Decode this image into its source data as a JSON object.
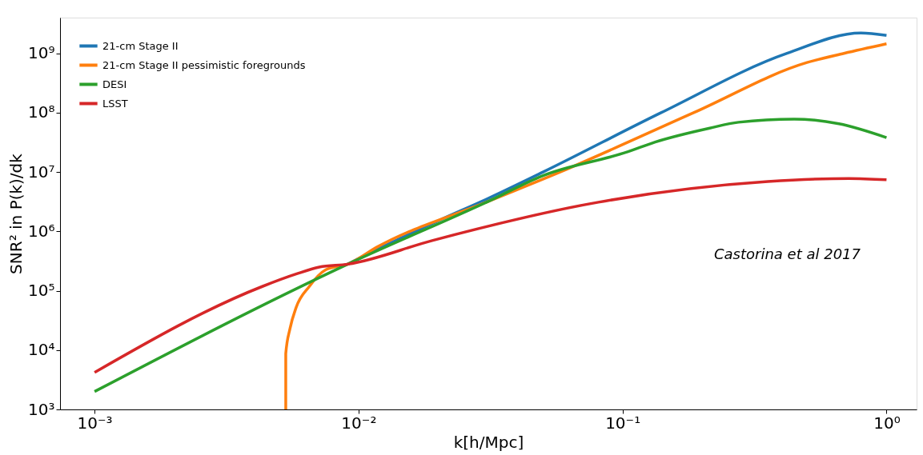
{
  "chart_data": {
    "type": "line",
    "xlabel": "k[h/Mpc]",
    "ylabel": "SNR² in P(k)/dk",
    "log": "xy",
    "grid": false,
    "legend": "top left",
    "marker": "none",
    "line_style": "solid",
    "xlim": [
      0.00074,
      1.3
    ],
    "ylim": [
      1000,
      4000000000
    ],
    "xticks": [
      {
        "value": 0.001,
        "label": "10⁻³"
      },
      {
        "value": 0.01,
        "label": "10⁻²"
      },
      {
        "value": 0.1,
        "label": "10⁻¹"
      },
      {
        "value": 1,
        "label": "10⁰"
      }
    ],
    "yticks": [
      {
        "value": 1000,
        "label": "10³"
      },
      {
        "value": 10000,
        "label": "10⁴"
      },
      {
        "value": 100000,
        "label": "10⁵"
      },
      {
        "value": 1000000,
        "label": "10⁶"
      },
      {
        "value": 10000000,
        "label": "10⁷"
      },
      {
        "value": 100000000,
        "label": "10⁸"
      },
      {
        "value": 1000000000,
        "label": "10⁹"
      }
    ],
    "annotations": [
      "Castorina et al 2017"
    ],
    "series": [
      {
        "name": "21-cm Stage II",
        "color": "#1f77b4",
        "x": [
          0.0091,
          0.0118,
          0.02,
          0.031,
          0.05,
          0.14,
          0.42,
          0.8,
          1.0
        ],
        "values": [
          280000,
          500000,
          1500000,
          3600000,
          10000000,
          100000000,
          1000000000,
          2200000000,
          2000000000
        ]
      },
      {
        "name": "21-cm Stage II pessimistic foregrounds",
        "color": "#ff7f0e",
        "x": [
          0.0053,
          0.0053,
          0.0055,
          0.0058,
          0.0065,
          0.0075,
          0.0091,
          0.0118,
          0.031,
          0.058,
          0.186,
          0.5,
          0.69,
          1.0
        ],
        "values": [
          1000,
          8700,
          23000,
          52000,
          117000,
          224000,
          280000,
          550000,
          3200000,
          10000000,
          100000000,
          700000000,
          1000000000,
          1450000000
        ]
      },
      {
        "name": "DESI",
        "color": "#2ca02c",
        "x": [
          0.001,
          0.0091,
          0.031,
          0.05,
          0.105,
          0.133,
          0.214,
          0.275,
          0.447,
          0.66,
          1.0
        ],
        "values": [
          2000,
          280000,
          3200000,
          8700000,
          22000000,
          32000000,
          55000000,
          69000000,
          78000000,
          65000000,
          38000000
        ]
      },
      {
        "name": "LSST",
        "color": "#d62728",
        "x": [
          0.001,
          0.0043,
          0.0058,
          0.0071,
          0.0091,
          0.019,
          0.081,
          0.355,
          0.72,
          1.0
        ],
        "values": [
          4200,
          117000,
          191000,
          250000,
          280000,
          700000,
          3100000,
          6900000,
          7800000,
          7400000
        ]
      }
    ]
  }
}
